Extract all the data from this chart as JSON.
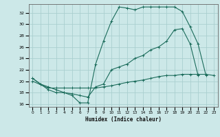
{
  "xlabel": "Humidex (Indice chaleur)",
  "bg_color": "#cce8e8",
  "grid_color": "#aacfcf",
  "line_color": "#1a6b5a",
  "xlim": [
    -0.5,
    23.5
  ],
  "ylim": [
    15.5,
    33.5
  ],
  "xticks": [
    0,
    1,
    2,
    3,
    4,
    5,
    6,
    7,
    8,
    9,
    10,
    11,
    12,
    13,
    14,
    15,
    16,
    17,
    18,
    19,
    20,
    21,
    22,
    23
  ],
  "yticks": [
    16,
    18,
    20,
    22,
    24,
    26,
    28,
    30,
    32
  ],
  "line1_x": [
    0,
    1,
    2,
    3,
    4,
    5,
    6,
    7,
    8,
    9,
    10,
    11,
    12,
    13,
    14,
    15,
    16,
    17,
    18,
    19,
    20,
    21,
    22
  ],
  "line1_y": [
    20.5,
    19.5,
    19.0,
    18.5,
    18.0,
    17.5,
    16.2,
    16.2,
    23.0,
    27.0,
    30.5,
    33.0,
    32.8,
    32.5,
    33.0,
    33.0,
    33.0,
    33.0,
    33.0,
    32.2,
    29.5,
    26.5,
    21.0
  ],
  "line2_x": [
    0,
    1,
    2,
    3,
    4,
    5,
    6,
    7,
    8,
    9,
    10,
    11,
    12,
    13,
    14,
    15,
    16,
    17,
    18,
    19,
    20,
    21
  ],
  "line2_y": [
    20.5,
    19.5,
    18.5,
    18.0,
    18.0,
    17.8,
    17.5,
    17.2,
    19.0,
    19.5,
    22.0,
    22.5,
    23.0,
    24.0,
    24.5,
    25.5,
    26.0,
    27.0,
    29.0,
    29.2,
    26.5,
    21.0
  ],
  "line3_x": [
    0,
    2,
    3,
    4,
    5,
    6,
    7,
    8,
    9,
    10,
    11,
    12,
    13,
    14,
    15,
    16,
    17,
    18,
    19,
    20,
    21,
    22,
    23
  ],
  "line3_y": [
    20.0,
    18.8,
    18.8,
    18.8,
    18.8,
    18.8,
    18.8,
    18.8,
    19.0,
    19.2,
    19.5,
    19.8,
    20.0,
    20.2,
    20.5,
    20.8,
    21.0,
    21.0,
    21.2,
    21.2,
    21.2,
    21.2,
    21.0
  ]
}
